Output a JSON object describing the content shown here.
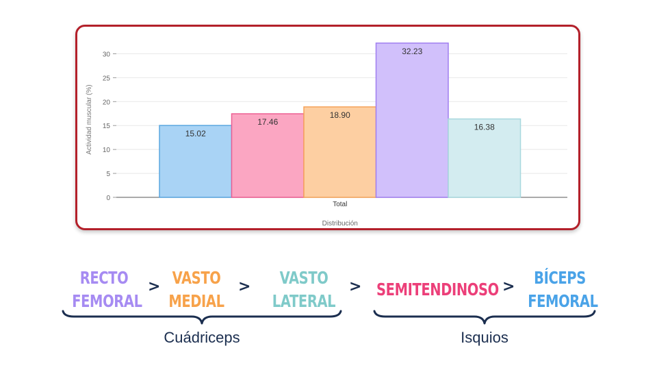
{
  "chart_data": {
    "type": "bar",
    "categories": [
      "Total"
    ],
    "series": [
      {
        "values": [
          15.02
        ],
        "color": "#a9d3f5",
        "stroke": "#5aa7e0"
      },
      {
        "values": [
          17.46
        ],
        "color": "#fba6c2",
        "stroke": "#ec5f92"
      },
      {
        "values": [
          18.9
        ],
        "color": "#fdcfa2",
        "stroke": "#f5a35a"
      },
      {
        "values": [
          32.23
        ],
        "color": "#d1c0fb",
        "stroke": "#a07ef0"
      },
      {
        "values": [
          16.38
        ],
        "color": "#d3ecf0",
        "stroke": "#a8d8de"
      }
    ],
    "data_labels": [
      "15.02",
      "17.46",
      "18.90",
      "32.23",
      "16.38"
    ],
    "ylabel": "Actividad muscular (%)",
    "xlabel": "Distribución",
    "ylim": [
      0,
      32.5
    ],
    "yticks": [
      0,
      5,
      10,
      15,
      20,
      25,
      30
    ],
    "grid": true
  },
  "sequence": {
    "items": [
      {
        "line1": "RECTO",
        "line2": "FEMORAL",
        "color": "#a68bf2"
      },
      {
        "line1": "VASTO",
        "line2": "MEDIAL",
        "color": "#f7a24a"
      },
      {
        "line1": "VASTO",
        "line2": "LATERAL",
        "color": "#7fcac9"
      },
      {
        "line1": "SEMITENDINOSO",
        "line2": "",
        "color": "#ec3f79"
      },
      {
        "line1": "BÍCEPS",
        "line2": "FEMORAL",
        "color": "#4aa3e8"
      }
    ],
    "arrow": ">",
    "arrow_color": "#1b2e4f"
  },
  "groups": {
    "left": "Cuádriceps",
    "right": "Isquios"
  },
  "colors": {
    "frame_border": "#b3202a",
    "brace": "#1b2e4f"
  }
}
